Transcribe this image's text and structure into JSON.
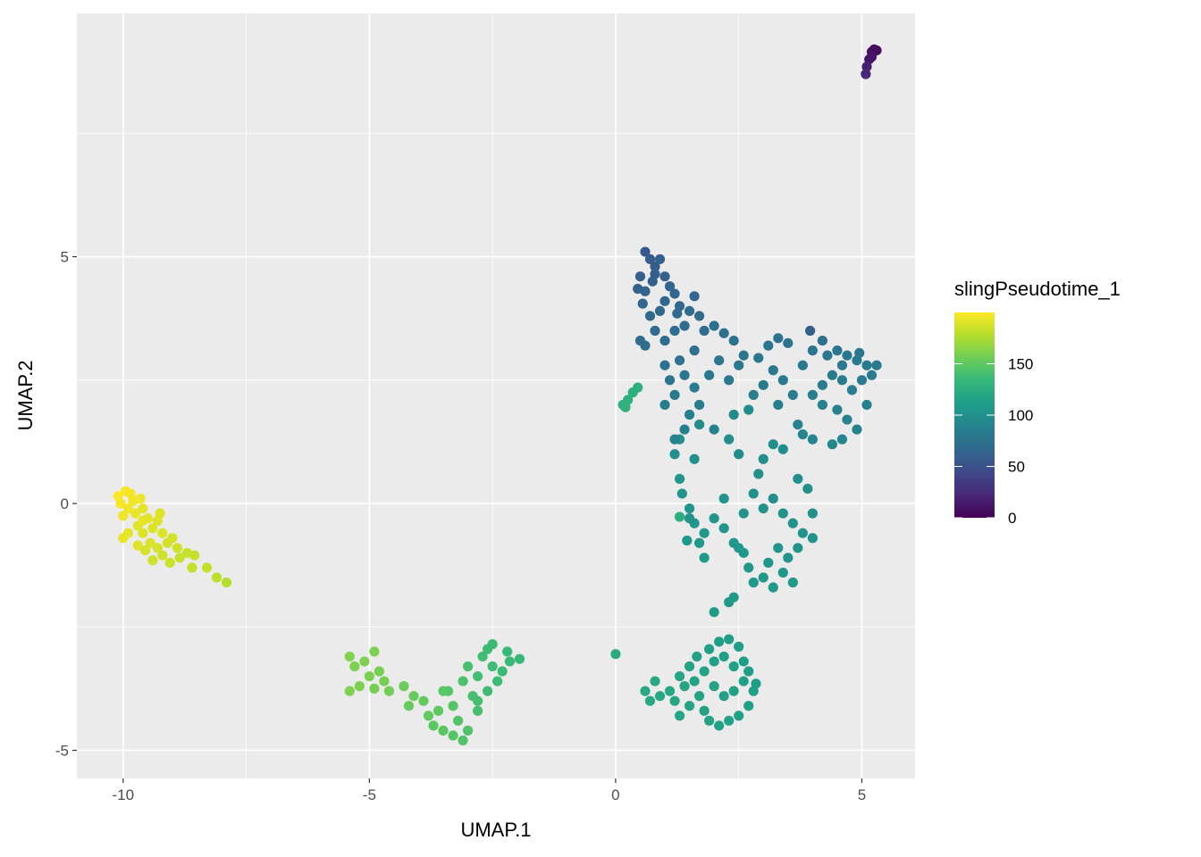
{
  "chart_data": {
    "type": "scatter",
    "title": "",
    "xlabel": "UMAP.1",
    "ylabel": "UMAP.2",
    "xlim": [
      -10.94,
      6.08
    ],
    "ylim": [
      -5.57,
      9.93
    ],
    "x_ticks": [
      -10,
      -5,
      0,
      5
    ],
    "y_ticks": [
      -5,
      0,
      5
    ],
    "x_tick_labels": [
      "-10",
      "-5",
      "0",
      "5"
    ],
    "y_tick_labels": [
      "-5",
      "0",
      "5"
    ],
    "grid": true,
    "background": "#EBEBEB",
    "legend": {
      "title": "slingPseudotime_1",
      "placement": "right",
      "type": "colorbar",
      "palette": "viridis",
      "range": [
        0,
        200
      ],
      "breaks": [
        0,
        50,
        100,
        150
      ],
      "break_labels": [
        "0",
        "50",
        "100",
        "150"
      ]
    },
    "point_fields": [
      "UMAP.1",
      "UMAP.2",
      "slingPseudotime_1"
    ],
    "points": [
      [
        -10.1,
        0.15,
        199
      ],
      [
        -9.95,
        0.25,
        198
      ],
      [
        -9.85,
        0.2,
        197
      ],
      [
        -10.05,
        0.0,
        198
      ],
      [
        -9.9,
        -0.1,
        196
      ],
      [
        -9.8,
        0.05,
        196
      ],
      [
        -10.0,
        -0.25,
        195
      ],
      [
        -9.75,
        -0.2,
        194
      ],
      [
        -9.6,
        -0.1,
        193
      ],
      [
        -9.5,
        -0.3,
        192
      ],
      [
        -9.7,
        -0.45,
        192
      ],
      [
        -9.9,
        -0.6,
        193
      ],
      [
        -10.0,
        -0.7,
        194
      ],
      [
        -9.6,
        -0.6,
        191
      ],
      [
        -9.4,
        -0.5,
        190
      ],
      [
        -9.3,
        -0.35,
        190
      ],
      [
        -9.2,
        -0.6,
        189
      ],
      [
        -9.45,
        -0.8,
        189
      ],
      [
        -9.7,
        -0.85,
        190
      ],
      [
        -9.55,
        -0.95,
        188
      ],
      [
        -9.3,
        -0.9,
        188
      ],
      [
        -9.1,
        -0.8,
        187
      ],
      [
        -9.0,
        -0.7,
        187
      ],
      [
        -8.9,
        -0.9,
        186
      ],
      [
        -9.2,
        -1.05,
        186
      ],
      [
        -9.4,
        -1.15,
        186
      ],
      [
        -9.05,
        -1.2,
        185
      ],
      [
        -8.85,
        -1.1,
        184
      ],
      [
        -8.7,
        -1.0,
        184
      ],
      [
        -8.55,
        -1.05,
        183
      ],
      [
        -8.6,
        -1.3,
        183
      ],
      [
        -8.3,
        -1.3,
        182
      ],
      [
        -8.1,
        -1.5,
        180
      ],
      [
        -7.9,
        -1.6,
        179
      ],
      [
        -9.6,
        -0.35,
        193
      ],
      [
        -9.25,
        -0.2,
        191
      ],
      [
        -9.65,
        0.1,
        195
      ],
      [
        -5.4,
        -3.1,
        162
      ],
      [
        -5.3,
        -3.3,
        161
      ],
      [
        -5.1,
        -3.2,
        161
      ],
      [
        -4.9,
        -3.0,
        160
      ],
      [
        -5.0,
        -3.5,
        160
      ],
      [
        -5.2,
        -3.7,
        160
      ],
      [
        -5.4,
        -3.8,
        161
      ],
      [
        -4.8,
        -3.4,
        159
      ],
      [
        -4.7,
        -3.6,
        158
      ],
      [
        -4.6,
        -3.8,
        157
      ],
      [
        -4.9,
        -3.75,
        158
      ],
      [
        -4.3,
        -3.7,
        155
      ],
      [
        -4.1,
        -3.9,
        153
      ],
      [
        -3.9,
        -4.0,
        152
      ],
      [
        -4.2,
        -4.1,
        153
      ],
      [
        -3.8,
        -4.3,
        151
      ],
      [
        -3.6,
        -4.2,
        150
      ],
      [
        -3.7,
        -4.5,
        149
      ],
      [
        -3.5,
        -4.6,
        148
      ],
      [
        -3.3,
        -4.7,
        146
      ],
      [
        -3.1,
        -4.8,
        145
      ],
      [
        -3.0,
        -4.6,
        144
      ],
      [
        -3.2,
        -4.4,
        145
      ],
      [
        -3.4,
        -3.8,
        147
      ],
      [
        -3.1,
        -3.6,
        143
      ],
      [
        -3.3,
        -4.1,
        146
      ],
      [
        -2.9,
        -3.9,
        141
      ],
      [
        -2.8,
        -4.2,
        141
      ],
      [
        -3.0,
        -3.3,
        141
      ],
      [
        -2.8,
        -3.5,
        139
      ],
      [
        -2.7,
        -3.1,
        138
      ],
      [
        -2.6,
        -2.95,
        137
      ],
      [
        -2.5,
        -3.3,
        137
      ],
      [
        -2.4,
        -3.6,
        137
      ],
      [
        -2.6,
        -3.8,
        138
      ],
      [
        -2.3,
        -3.4,
        136
      ],
      [
        -2.15,
        -3.2,
        135
      ],
      [
        -1.95,
        -3.15,
        134
      ],
      [
        -2.2,
        -3.0,
        135
      ],
      [
        -2.5,
        -2.85,
        136
      ],
      [
        -2.8,
        -4.0,
        140
      ],
      [
        -3.5,
        -3.8,
        148
      ],
      [
        0.0,
        -3.05,
        122
      ],
      [
        0.6,
        -3.8,
        120
      ],
      [
        0.8,
        -3.6,
        119
      ],
      [
        0.9,
        -3.9,
        119
      ],
      [
        0.7,
        -4.0,
        120
      ],
      [
        1.1,
        -3.8,
        118
      ],
      [
        1.2,
        -4.0,
        118
      ],
      [
        1.3,
        -3.5,
        117
      ],
      [
        1.4,
        -3.7,
        117
      ],
      [
        1.5,
        -3.3,
        116
      ],
      [
        1.6,
        -3.6,
        116
      ],
      [
        1.7,
        -3.9,
        116
      ],
      [
        1.5,
        -4.1,
        117
      ],
      [
        1.8,
        -4.2,
        115
      ],
      [
        1.9,
        -4.4,
        115
      ],
      [
        2.1,
        -4.5,
        114
      ],
      [
        2.3,
        -4.4,
        114
      ],
      [
        2.5,
        -4.3,
        113
      ],
      [
        2.7,
        -4.1,
        113
      ],
      [
        2.8,
        -3.8,
        113
      ],
      [
        2.6,
        -3.6,
        113
      ],
      [
        2.4,
        -3.8,
        114
      ],
      [
        2.2,
        -3.9,
        114
      ],
      [
        2.0,
        -3.7,
        115
      ],
      [
        1.8,
        -3.4,
        115
      ],
      [
        2.0,
        -3.2,
        114
      ],
      [
        2.2,
        -3.1,
        113
      ],
      [
        2.4,
        -3.3,
        113
      ],
      [
        2.6,
        -3.2,
        112
      ],
      [
        2.5,
        -2.9,
        112
      ],
      [
        2.3,
        -2.75,
        112
      ],
      [
        2.1,
        -2.8,
        112
      ],
      [
        1.9,
        -2.95,
        113
      ],
      [
        2.7,
        -3.4,
        112
      ],
      [
        2.85,
        -3.65,
        112
      ],
      [
        2.0,
        -2.2,
        110
      ],
      [
        2.3,
        -2.0,
        109
      ],
      [
        2.4,
        -1.9,
        108
      ],
      [
        1.65,
        -3.1,
        115
      ],
      [
        1.3,
        -4.3,
        117
      ],
      [
        1.3,
        0.5,
        104
      ],
      [
        1.35,
        0.2,
        104
      ],
      [
        1.5,
        -0.1,
        104
      ],
      [
        1.6,
        -0.4,
        105
      ],
      [
        1.8,
        -0.6,
        106
      ],
      [
        1.7,
        -0.8,
        107
      ],
      [
        1.45,
        -0.75,
        107
      ],
      [
        2.0,
        -0.3,
        105
      ],
      [
        2.2,
        -0.5,
        105
      ],
      [
        2.4,
        -0.8,
        106
      ],
      [
        2.6,
        -1.0,
        105
      ],
      [
        2.7,
        -1.3,
        106
      ],
      [
        2.8,
        -1.6,
        107
      ],
      [
        3.0,
        -1.5,
        106
      ],
      [
        3.2,
        -1.7,
        107
      ],
      [
        3.1,
        -1.2,
        105
      ],
      [
        3.3,
        -0.9,
        104
      ],
      [
        3.5,
        -1.1,
        104
      ],
      [
        3.7,
        -0.9,
        103
      ],
      [
        3.8,
        -0.6,
        102
      ],
      [
        3.6,
        -0.4,
        102
      ],
      [
        3.4,
        -0.2,
        102
      ],
      [
        3.2,
        0.1,
        101
      ],
      [
        3.0,
        -0.1,
        102
      ],
      [
        2.8,
        0.2,
        101
      ],
      [
        2.6,
        -0.2,
        102
      ],
      [
        2.9,
        0.6,
        100
      ],
      [
        3.0,
        0.9,
        99
      ],
      [
        3.2,
        1.2,
        98
      ],
      [
        3.4,
        1.1,
        97
      ],
      [
        3.9,
        0.3,
        100
      ],
      [
        4.0,
        -0.2,
        101
      ],
      [
        4.0,
        -0.7,
        102
      ],
      [
        3.4,
        -1.4,
        105
      ],
      [
        3.6,
        -1.6,
        106
      ],
      [
        1.6,
        0.9,
        100
      ],
      [
        1.3,
        1.3,
        99
      ],
      [
        1.2,
        1.0,
        99
      ],
      [
        1.8,
        -1.1,
        108
      ],
      [
        2.5,
        -0.9,
        106
      ],
      [
        2.2,
        0.1,
        103
      ],
      [
        3.7,
        0.5,
        100
      ],
      [
        1.7,
        1.6,
        97
      ],
      [
        2.4,
        1.8,
        96
      ],
      [
        2.7,
        1.9,
        95
      ],
      [
        2.3,
        1.3,
        97
      ],
      [
        2.5,
        1.0,
        98
      ],
      [
        1.5,
        -0.3,
        102
      ],
      [
        1.3,
        -0.27,
        125
      ],
      [
        0.6,
        5.1,
        55
      ],
      [
        0.7,
        4.95,
        57
      ],
      [
        0.8,
        4.8,
        59
      ],
      [
        0.9,
        4.95,
        60
      ],
      [
        0.5,
        4.6,
        60
      ],
      [
        0.45,
        4.35,
        63
      ],
      [
        0.6,
        4.3,
        64
      ],
      [
        0.75,
        4.5,
        61
      ],
      [
        1.0,
        4.6,
        62
      ],
      [
        1.1,
        4.4,
        64
      ],
      [
        1.2,
        4.25,
        65
      ],
      [
        0.55,
        4.05,
        65
      ],
      [
        0.7,
        3.8,
        67
      ],
      [
        0.9,
        3.9,
        67
      ],
      [
        1.0,
        4.1,
        66
      ],
      [
        1.3,
        4.0,
        67
      ],
      [
        1.5,
        3.9,
        68
      ],
      [
        1.6,
        4.2,
        66
      ],
      [
        1.7,
        3.8,
        69
      ],
      [
        1.4,
        3.6,
        70
      ],
      [
        1.2,
        3.5,
        71
      ],
      [
        0.8,
        3.5,
        70
      ],
      [
        0.6,
        3.2,
        71
      ],
      [
        0.5,
        3.3,
        70
      ],
      [
        1.0,
        3.3,
        71
      ],
      [
        1.8,
        3.5,
        72
      ],
      [
        2.0,
        3.6,
        73
      ],
      [
        2.2,
        3.45,
        74
      ],
      [
        2.4,
        3.3,
        76
      ],
      [
        1.6,
        3.1,
        74
      ],
      [
        1.3,
        2.9,
        75
      ],
      [
        1.0,
        2.8,
        76
      ],
      [
        1.1,
        2.5,
        78
      ],
      [
        1.4,
        2.6,
        79
      ],
      [
        1.6,
        2.35,
        81
      ],
      [
        1.7,
        2.0,
        84
      ],
      [
        1.5,
        1.8,
        86
      ],
      [
        1.4,
        1.5,
        88
      ],
      [
        1.2,
        1.3,
        90
      ],
      [
        1.9,
        2.6,
        80
      ],
      [
        2.1,
        2.9,
        78
      ],
      [
        2.3,
        2.5,
        81
      ],
      [
        2.5,
        2.8,
        80
      ],
      [
        2.6,
        3.0,
        79
      ],
      [
        2.9,
        2.95,
        79
      ],
      [
        3.1,
        3.2,
        78
      ],
      [
        3.3,
        3.35,
        77
      ],
      [
        3.5,
        3.25,
        76
      ],
      [
        3.2,
        2.7,
        81
      ],
      [
        3.0,
        2.4,
        83
      ],
      [
        3.4,
        2.5,
        82
      ],
      [
        3.6,
        2.2,
        84
      ],
      [
        3.3,
        2.0,
        86
      ],
      [
        3.8,
        2.8,
        80
      ],
      [
        4.0,
        3.1,
        78
      ],
      [
        4.2,
        3.3,
        73
      ],
      [
        4.3,
        3.0,
        78
      ],
      [
        4.5,
        3.1,
        79
      ],
      [
        4.7,
        3.0,
        80
      ],
      [
        4.9,
        2.9,
        81
      ],
      [
        5.1,
        2.8,
        82
      ],
      [
        5.2,
        2.6,
        83
      ],
      [
        5.0,
        2.5,
        84
      ],
      [
        4.8,
        2.3,
        85
      ],
      [
        4.6,
        2.5,
        84
      ],
      [
        4.4,
        2.6,
        83
      ],
      [
        4.2,
        2.4,
        84
      ],
      [
        4.0,
        2.2,
        86
      ],
      [
        4.2,
        2.0,
        87
      ],
      [
        4.5,
        1.9,
        88
      ],
      [
        4.7,
        1.7,
        89
      ],
      [
        4.9,
        1.5,
        90
      ],
      [
        5.1,
        2.0,
        88
      ],
      [
        4.0,
        1.3,
        91
      ],
      [
        3.8,
        1.4,
        91
      ],
      [
        4.4,
        1.2,
        92
      ],
      [
        4.6,
        1.3,
        91
      ],
      [
        3.95,
        3.5,
        60
      ],
      [
        1.2,
        2.2,
        82
      ],
      [
        1.0,
        2.0,
        84
      ],
      [
        2.8,
        2.2,
        85
      ],
      [
        2.0,
        1.5,
        90
      ],
      [
        3.7,
        1.6,
        90
      ],
      [
        4.95,
        3.05,
        78
      ],
      [
        5.3,
        2.8,
        81
      ],
      [
        4.6,
        2.8,
        81
      ],
      [
        0.8,
        4.65,
        60
      ],
      [
        1.25,
        3.85,
        68
      ],
      [
        0.15,
        2.0,
        128
      ],
      [
        0.25,
        2.1,
        127
      ],
      [
        0.35,
        2.25,
        126
      ],
      [
        0.45,
        2.35,
        125
      ],
      [
        0.2,
        1.95,
        128
      ],
      [
        5.2,
        9.15,
        10
      ],
      [
        5.25,
        9.2,
        8
      ],
      [
        5.3,
        9.18,
        6
      ],
      [
        5.15,
        9.0,
        12
      ],
      [
        5.2,
        9.05,
        11
      ],
      [
        5.1,
        8.85,
        18
      ],
      [
        5.08,
        8.7,
        22
      ]
    ]
  }
}
